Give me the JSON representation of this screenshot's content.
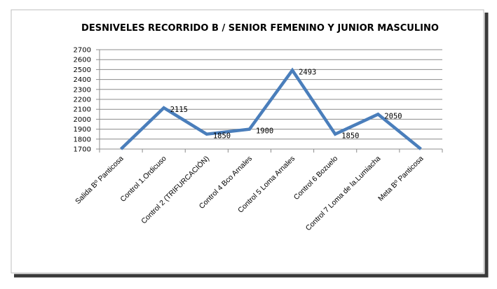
{
  "chart_data": {
    "type": "line",
    "title": "DESNIVELES RECORRIDO  B / SENIOR FEMENINO Y JUNIOR MASCULINO",
    "categories": [
      "Salida Bº Panticosa",
      "Control 1.Ordicuso",
      "Control 2 (TRIFURCACIÓN)",
      "Control 4 Bco Arnales",
      "Control 5 Loma Arnales",
      "Control 6 Bozuelo",
      "Control 7 Loma de la.Lumiacha",
      "Meta Bº Panticosa"
    ],
    "values": [
      1700,
      2115,
      1850,
      1900,
      2493,
      1850,
      2050,
      1700
    ],
    "data_labels": [
      "",
      "2115",
      "1850",
      "1900",
      "2493",
      "1850",
      "2050",
      ""
    ],
    "yticks": [
      "1700",
      "1800",
      "1900",
      "2000",
      "2100",
      "2200",
      "2300",
      "2400",
      "2500",
      "2600",
      "2700"
    ],
    "ylim": [
      1700,
      2700
    ],
    "grid": true,
    "legend": "none",
    "colors": {
      "line": "#4a7ebb",
      "grid": "#8c8c8c",
      "text": "#000000"
    }
  }
}
